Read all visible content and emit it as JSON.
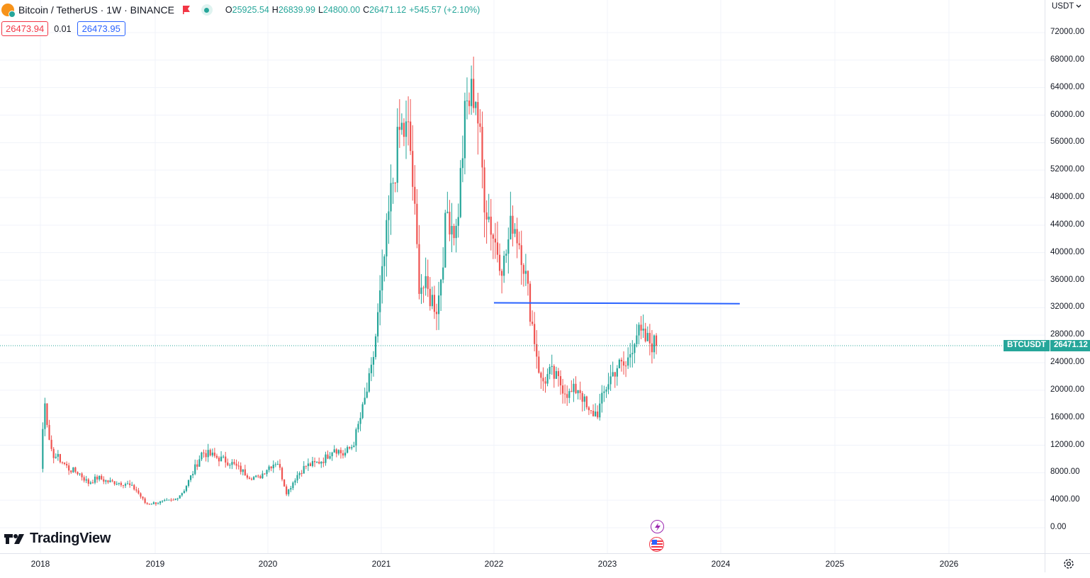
{
  "symbol": {
    "title": "Bitcoin / TetherUS · 1W · BINANCE",
    "icon": "bitcoin-icon",
    "flag_icon": "flag-icon",
    "status_icon": "market-open-dot-icon"
  },
  "ohlc": {
    "o_label": "O",
    "o_value": "25925.54",
    "h_label": "H",
    "h_value": "26839.99",
    "l_label": "L",
    "l_value": "24800.00",
    "c_label": "C",
    "c_value": "26471.12",
    "change": "+545.57 (+2.10%)"
  },
  "trade": {
    "sell_price": "26473.94",
    "spread": "0.01",
    "buy_price": "26473.95"
  },
  "currency": {
    "label": "USDT",
    "icon": "chevron-down-icon"
  },
  "price_axis": {
    "labels": [
      "72000.00",
      "68000.00",
      "64000.00",
      "60000.00",
      "56000.00",
      "52000.00",
      "48000.00",
      "44000.00",
      "40000.00",
      "36000.00",
      "32000.00",
      "28000.00",
      "24000.00",
      "20000.00",
      "16000.00",
      "12000.00",
      "8000.00",
      "4000.00",
      "0.00"
    ]
  },
  "time_axis": {
    "labels": [
      "2018",
      "2019",
      "2020",
      "2021",
      "2022",
      "2023",
      "2024",
      "2025",
      "2026"
    ]
  },
  "last_price": {
    "symbol": "BTCUSDT",
    "value": "26471.12"
  },
  "logo": {
    "text": "TradingView",
    "icon": "tradingview-logo-icon"
  },
  "events": {
    "icons": [
      "lightning-event-icon",
      "us-flag-event-icon"
    ]
  },
  "settings": {
    "icon": "gear-icon"
  },
  "colors": {
    "up": "#26a69a",
    "down": "#ef5350",
    "horizontal_line": "#2962ff",
    "grid": "#f0f3fa",
    "last_price_line": "#26a69a"
  },
  "chart_data": {
    "type": "candlestick",
    "symbol": "BTCUSDT",
    "interval": "1W",
    "ylim": [
      0,
      72000
    ],
    "x_range": [
      "2017-12",
      "2026-11"
    ],
    "horizontal_line": {
      "price": 32700,
      "from": "2022-01",
      "to": "2024-03"
    },
    "last_price": 26471.12,
    "anchor_points": [
      [
        "2017-12",
        3800
      ],
      [
        "2018-01",
        8000
      ],
      [
        "2018-01",
        14000
      ],
      [
        "2018-01",
        19000
      ],
      [
        "2018-01",
        16000
      ],
      [
        "2018-02",
        11000
      ],
      [
        "2018-03",
        10000
      ],
      [
        "2018-04",
        8500
      ],
      [
        "2018-05",
        8000
      ],
      [
        "2018-06",
        6500
      ],
      [
        "2018-07",
        7300
      ],
      [
        "2018-08",
        6700
      ],
      [
        "2018-09",
        6600
      ],
      [
        "2018-10",
        6400
      ],
      [
        "2018-11",
        5500
      ],
      [
        "2018-12",
        3500
      ],
      [
        "2019-01",
        3600
      ],
      [
        "2019-02",
        3800
      ],
      [
        "2019-03",
        4000
      ],
      [
        "2019-04",
        5300
      ],
      [
        "2019-05",
        8000
      ],
      [
        "2019-06",
        11000
      ],
      [
        "2019-07",
        10500
      ],
      [
        "2019-08",
        10000
      ],
      [
        "2019-09",
        9500
      ],
      [
        "2019-10",
        8500
      ],
      [
        "2019-11",
        7500
      ],
      [
        "2019-12",
        7200
      ],
      [
        "2020-01",
        8800
      ],
      [
        "2020-02",
        9700
      ],
      [
        "2020-03",
        5000
      ],
      [
        "2020-04",
        7500
      ],
      [
        "2020-05",
        9000
      ],
      [
        "2020-06",
        9300
      ],
      [
        "2020-07",
        10000
      ],
      [
        "2020-08",
        11700
      ],
      [
        "2020-09",
        10600
      ],
      [
        "2020-10",
        12000
      ],
      [
        "2020-11",
        17000
      ],
      [
        "2020-12",
        23000
      ],
      [
        "2021-01",
        35000
      ],
      [
        "2021-02",
        48000
      ],
      [
        "2021-03",
        58000
      ],
      [
        "2021-04",
        57000
      ],
      [
        "2021-05",
        36000
      ],
      [
        "2021-06",
        34000
      ],
      [
        "2021-07",
        32000
      ],
      [
        "2021-08",
        46000
      ],
      [
        "2021-09",
        43000
      ],
      [
        "2021-10",
        61000
      ],
      [
        "2021-11",
        64000
      ],
      [
        "2021-12",
        48000
      ],
      [
        "2022-01",
        42000
      ],
      [
        "2022-02",
        38000
      ],
      [
        "2022-03",
        45000
      ],
      [
        "2022-04",
        40000
      ],
      [
        "2022-05",
        30000
      ],
      [
        "2022-06",
        21000
      ],
      [
        "2022-07",
        22500
      ],
      [
        "2022-08",
        21000
      ],
      [
        "2022-09",
        19300
      ],
      [
        "2022-10",
        20500
      ],
      [
        "2022-11",
        16500
      ],
      [
        "2022-12",
        16800
      ],
      [
        "2023-01",
        21000
      ],
      [
        "2023-02",
        23500
      ],
      [
        "2023-03",
        23500
      ],
      [
        "2023-04",
        28500
      ],
      [
        "2023-05",
        27300
      ],
      [
        "2023-06",
        26471
      ]
    ]
  }
}
